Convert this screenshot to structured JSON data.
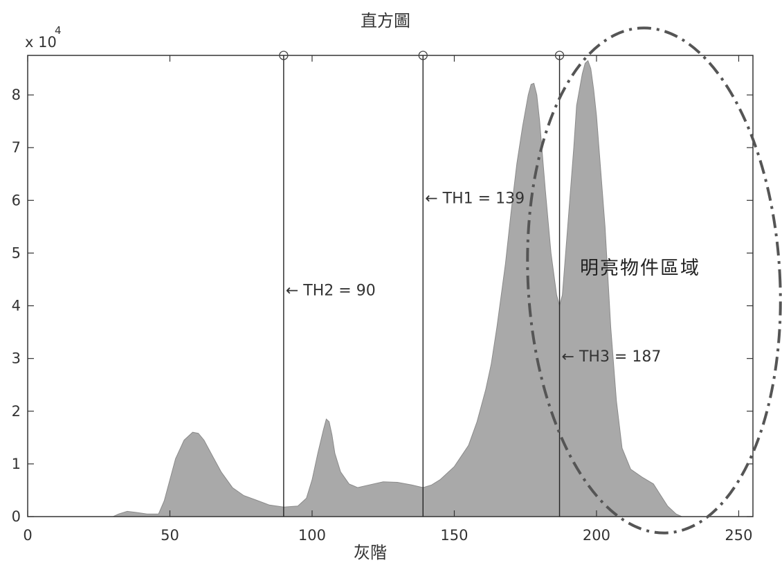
{
  "chart_data": {
    "type": "area",
    "title": "直方圖",
    "xlabel": "灰階",
    "ylabel": "",
    "y_multiplier": "x 10",
    "y_multiplier_exponent": "4",
    "xlim": [
      0,
      255
    ],
    "ylim": [
      0,
      8.75
    ],
    "x_ticks": [
      0,
      50,
      100,
      150,
      200,
      250
    ],
    "y_ticks": [
      0,
      1,
      2,
      3,
      4,
      5,
      6,
      7,
      8
    ],
    "grid": false,
    "fill_color": "#a9a9a9",
    "line_color": "#333333",
    "series": [
      {
        "x": [
          0,
          30,
          32,
          35,
          38,
          42,
          46,
          48,
          50,
          52,
          55,
          58,
          60,
          62,
          65,
          68,
          72,
          76,
          80,
          85,
          90,
          95,
          98,
          100,
          102,
          104,
          105,
          106,
          107,
          108,
          110,
          113,
          116,
          120,
          125,
          130,
          135,
          139,
          142,
          145,
          150,
          155,
          158,
          161,
          163,
          165,
          168,
          170,
          172,
          174,
          176,
          177,
          178,
          179,
          180,
          182,
          184,
          186,
          187,
          188,
          190,
          192,
          193,
          195,
          196,
          197,
          198,
          199,
          200,
          201,
          203,
          205,
          207,
          209,
          212,
          216,
          220,
          222,
          225,
          228,
          230,
          240,
          255
        ],
        "y": [
          0,
          0,
          0.05,
          0.1,
          0.08,
          0.05,
          0.05,
          0.3,
          0.7,
          1.1,
          1.45,
          1.6,
          1.58,
          1.45,
          1.15,
          0.85,
          0.55,
          0.4,
          0.32,
          0.22,
          0.18,
          0.2,
          0.35,
          0.7,
          1.2,
          1.65,
          1.85,
          1.8,
          1.55,
          1.2,
          0.85,
          0.62,
          0.55,
          0.6,
          0.66,
          0.65,
          0.6,
          0.55,
          0.6,
          0.7,
          0.95,
          1.35,
          1.8,
          2.4,
          2.9,
          3.6,
          4.8,
          5.8,
          6.7,
          7.4,
          8.0,
          8.2,
          8.22,
          8.0,
          7.5,
          6.2,
          5.0,
          4.2,
          4.0,
          4.2,
          5.6,
          7.0,
          7.8,
          8.4,
          8.6,
          8.65,
          8.5,
          8.1,
          7.6,
          6.9,
          5.5,
          3.6,
          2.2,
          1.3,
          0.9,
          0.75,
          0.62,
          0.45,
          0.2,
          0.05,
          0,
          0,
          0
        ]
      }
    ],
    "thresholds": [
      {
        "x": 90,
        "label": "← TH2 = 90",
        "y_pos": 4.3
      },
      {
        "x": 139,
        "label": "← TH1 = 139",
        "y_pos": 6.05
      },
      {
        "x": 187,
        "label": "← TH3 = 187",
        "y_pos": 3.05
      }
    ],
    "region_label": "明亮物件區域"
  }
}
